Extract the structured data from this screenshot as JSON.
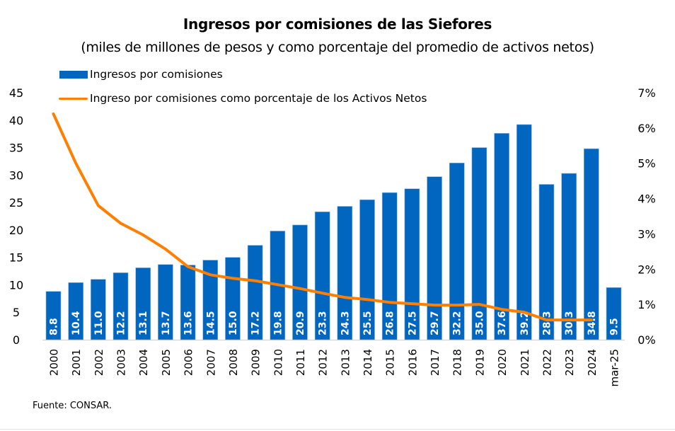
{
  "chart_data": {
    "type": "bar",
    "title": "Ingresos por comisiones de las Siefores",
    "subtitle": "(miles de millones de pesos y como porcentaje del promedio de activos netos)",
    "categories": [
      "2000",
      "2001",
      "2002",
      "2003",
      "2004",
      "2005",
      "2006",
      "2007",
      "2008",
      "2009",
      "2010",
      "2011",
      "2012",
      "2013",
      "2014",
      "2015",
      "2016",
      "2017",
      "2018",
      "2019",
      "2020",
      "2021",
      "2022",
      "2023",
      "2024",
      "mar-25"
    ],
    "series": [
      {
        "name": "Ingresos por comisiones",
        "type": "bar",
        "axis": "left",
        "color": "#0066C0",
        "values": [
          8.8,
          10.4,
          11.0,
          12.2,
          13.1,
          13.7,
          13.6,
          14.5,
          15.0,
          17.2,
          19.8,
          20.9,
          23.3,
          24.3,
          25.5,
          26.8,
          27.5,
          29.7,
          32.2,
          35.0,
          37.6,
          39.2,
          28.3,
          30.3,
          34.8,
          9.5
        ],
        "data_labels": [
          "8.8",
          "10.4",
          "11.0",
          "12.2",
          "13.1",
          "13.7",
          "13.6",
          "14.5",
          "15.0",
          "17.2",
          "19.8",
          "20.9",
          "23.3",
          "24.3",
          "25.5",
          "26.8",
          "27.5",
          "29.7",
          "32.2",
          "35.0",
          "37.6",
          "39.2",
          "28.3",
          "30.3",
          "34.8",
          "9.5"
        ]
      },
      {
        "name": "Ingreso por comisiones como porcentaje de los Activos Netos",
        "type": "line",
        "axis": "right",
        "color": "#FF7F00",
        "values": [
          6.4,
          5.0,
          3.8,
          3.3,
          2.97,
          2.57,
          2.07,
          1.84,
          1.74,
          1.67,
          1.56,
          1.45,
          1.32,
          1.2,
          1.14,
          1.06,
          1.02,
          0.98,
          0.98,
          1.0,
          0.86,
          0.78,
          0.56,
          0.56,
          0.56,
          null
        ]
      }
    ],
    "xlabel": "",
    "ylabel": "",
    "ylim": [
      0,
      45
    ],
    "yticks": [
      "0",
      "5",
      "10",
      "15",
      "20",
      "25",
      "30",
      "35",
      "40",
      "45"
    ],
    "y2lim": [
      0,
      7
    ],
    "y2ticks": [
      "0%",
      "1%",
      "2%",
      "3%",
      "4%",
      "5%",
      "6%",
      "7%"
    ],
    "grid": false,
    "legend_position": "top-left"
  },
  "legend": {
    "bar_label": "Ingresos por comisiones",
    "line_label": "Ingreso por comisiones como porcentaje de los Activos Netos"
  },
  "footer": "Fuente: CONSAR."
}
